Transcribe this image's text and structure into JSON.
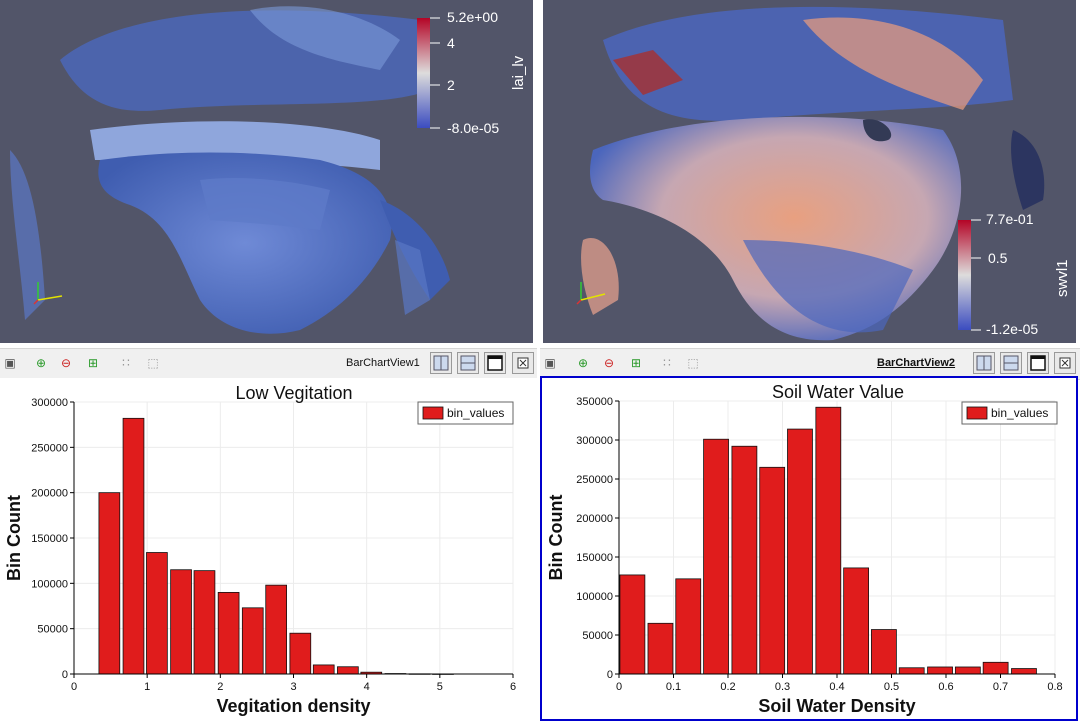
{
  "views": {
    "left": {
      "label": "BarChartView1",
      "colorbar": {
        "title": "lai_lv",
        "max_label": "5.2e+00",
        "mid1": "4",
        "mid2": "2",
        "min_label": "-8.0e-05"
      }
    },
    "right": {
      "label": "BarChartView2",
      "colorbar": {
        "title": "swvl1",
        "max_label": "7.7e-01",
        "mid": "0.5",
        "min_label": "-1.2e-05"
      }
    }
  },
  "toolbar_icons": [
    "camera-icon",
    "zoom-to-data-icon",
    "minus-icon",
    "interact-icon",
    "select-points-icon",
    "select-cells-icon"
  ],
  "colors": {
    "bar": "#e01c1c",
    "view_bg": "#525569",
    "active_border": "#0000cc"
  },
  "chart_data": [
    {
      "type": "bar",
      "title": "Low Vegitation",
      "xlabel": "Vegitation density",
      "ylabel": "Bin Count",
      "legend": "bin_values",
      "legend_position": "top-right",
      "xlim": [
        0,
        6
      ],
      "ylim": [
        0,
        300000
      ],
      "x_ticks": [
        "0",
        "1",
        "2",
        "3",
        "4",
        "5",
        "6"
      ],
      "y_ticks": [
        "0",
        "50000",
        "100000",
        "150000",
        "200000",
        "250000",
        "300000"
      ],
      "bin_width": 0.326,
      "x": [
        0.49,
        0.82,
        1.14,
        1.47,
        1.79,
        2.12,
        2.45,
        2.77,
        3.1,
        3.42,
        3.75,
        4.07,
        4.4,
        4.73,
        5.05
      ],
      "values": [
        200000,
        282000,
        134000,
        115000,
        114000,
        90000,
        73000,
        98000,
        45000,
        10000,
        8000,
        2000,
        500,
        200,
        100
      ]
    },
    {
      "type": "bar",
      "title": "Soil Water Value",
      "xlabel": "Soil Water Density",
      "ylabel": "Bin Count",
      "legend": "bin_values",
      "legend_position": "top-right",
      "xlim": [
        0,
        0.8
      ],
      "ylim": [
        0,
        350000
      ],
      "x_ticks": [
        "0",
        "0.1",
        "0.2",
        "0.3",
        "0.4",
        "0.5",
        "0.6",
        "0.7",
        "0.8"
      ],
      "y_ticks": [
        "0",
        "50000",
        "100000",
        "150000",
        "200000",
        "250000",
        "300000",
        "350000"
      ],
      "bin_width": 0.0513,
      "x": [
        0.0255,
        0.077,
        0.128,
        0.179,
        0.231,
        0.282,
        0.333,
        0.385,
        0.436,
        0.487,
        0.538,
        0.59,
        0.641,
        0.692,
        0.744
      ],
      "values": [
        127000,
        65000,
        122000,
        301000,
        292000,
        265000,
        314000,
        342000,
        136000,
        57000,
        8000,
        9000,
        9000,
        15000,
        7000
      ]
    }
  ]
}
